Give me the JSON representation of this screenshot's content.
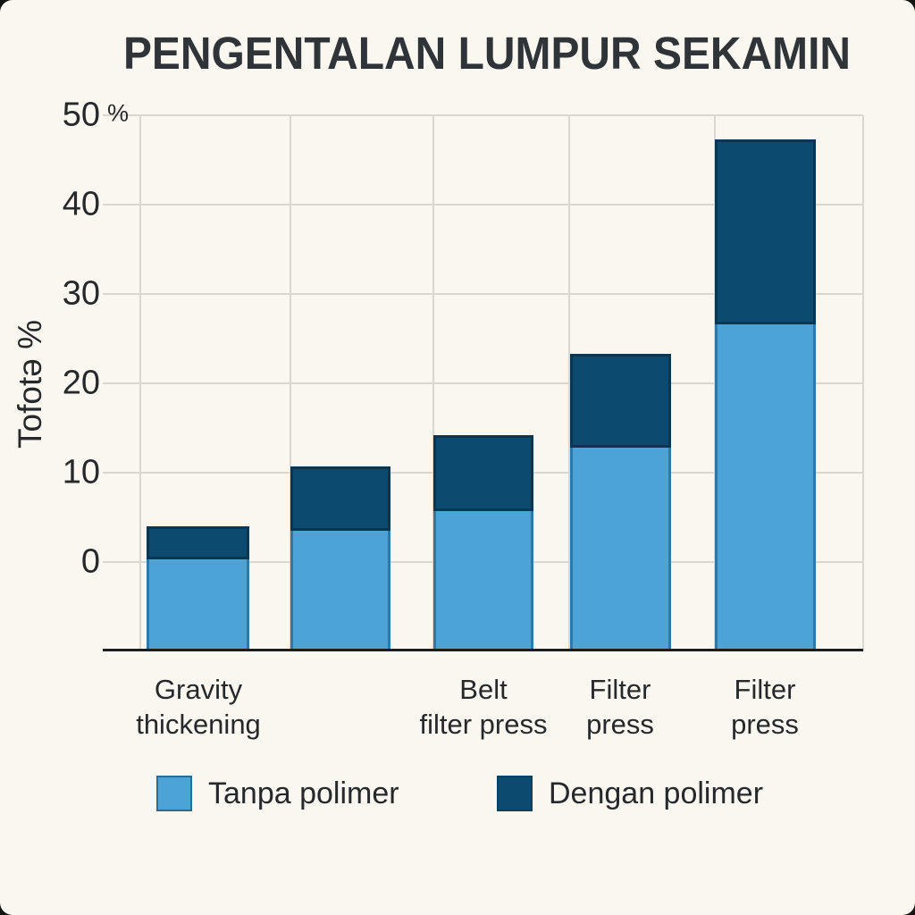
{
  "colors": {
    "background": "#faf7f0",
    "outer_background": "#141414",
    "grid": "#d9d7d0",
    "axis_line": "#1b1d20",
    "text": "#26292c",
    "title_text": "#2f3438",
    "series_light": "#4ba3d6",
    "series_dark": "#0d4a70"
  },
  "chart_data": {
    "type": "bar",
    "stacked": true,
    "title": "PENGENTALAN LUMPUR SEKAMIN",
    "ylabel": "Tofotə %",
    "xlabel": "",
    "grid": true,
    "ylim": [
      -10,
      50
    ],
    "baseline_value": -10,
    "baseline_note": "bars are drawn from the x-axis line, which sits one unlabeled gridstep (≈10) below the 0 tick",
    "y_ticks": [
      {
        "value": 50,
        "label": "50",
        "suffix": "%"
      },
      {
        "value": 40,
        "label": "40",
        "suffix": ""
      },
      {
        "value": 30,
        "label": "30",
        "suffix": ""
      },
      {
        "value": 20,
        "label": "20",
        "suffix": ""
      },
      {
        "value": 10,
        "label": "10",
        "suffix": ""
      },
      {
        "value": 0,
        "label": "0",
        "suffix": ""
      }
    ],
    "categories": [
      {
        "lines": [
          "Gravity",
          "thickening"
        ]
      },
      {
        "lines": []
      },
      {
        "lines": [
          "Belt",
          "filter press"
        ]
      },
      {
        "lines": [
          "Filter",
          "press"
        ]
      },
      {
        "lines": [
          "Filter",
          "press"
        ]
      }
    ],
    "series": [
      {
        "name": "Tanpa polimer",
        "color": "#4ba3d6",
        "values": [
          0.3,
          3.5,
          5.7,
          12.8,
          26.6
        ]
      },
      {
        "name": "Dengan polimer",
        "color": "#0d4a70",
        "values": [
          3.7,
          7.2,
          8.5,
          10.5,
          20.7
        ]
      }
    ],
    "stack_totals": [
      4.0,
      10.7,
      14.2,
      23.3,
      47.3
    ],
    "legend": {
      "position": "bottom",
      "items": [
        {
          "label": "Tanpa polimer",
          "color": "#4ba3d6"
        },
        {
          "label": "Dengan polimer",
          "color": "#0d4a70"
        }
      ]
    }
  }
}
